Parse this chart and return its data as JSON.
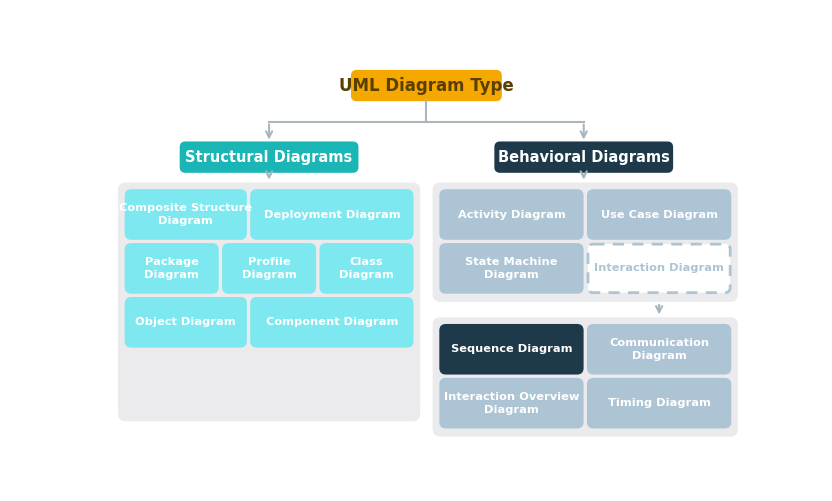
{
  "bg_color": "#ffffff",
  "title": "UML Diagram Type",
  "title_color": "#5a4000",
  "title_bg": "#f5a800",
  "structural_label": "Structural Diagrams",
  "structural_bg": "#1ab5b5",
  "behavioral_label": "Behavioral Diagrams",
  "behavioral_bg": "#1e3a4a",
  "container_bg": "#ebebee",
  "cyan_box": "#7de8f0",
  "steel_blue_box": "#adc4d4",
  "dark_navy_box": "#1e3a4a",
  "interaction_text_color": "#adc4d4",
  "arrow_color": "#aab5bc",
  "white": "#ffffff"
}
